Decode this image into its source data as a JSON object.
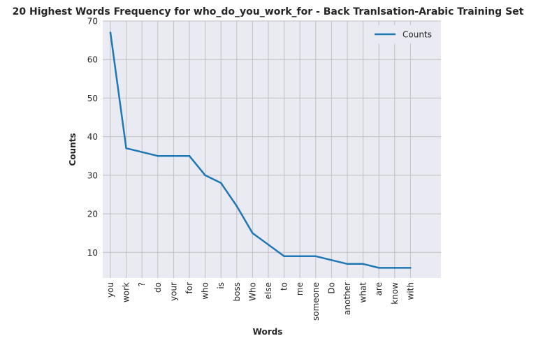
{
  "chart_data": {
    "type": "line",
    "title": "20 Highest Words Frequency for who_do_you_work_for - Back Tranlsation-Arabic Training Set",
    "xlabel": "Words",
    "ylabel": "Counts",
    "categories": [
      "you",
      "work",
      "?",
      "do",
      "your",
      "for",
      "who",
      "is",
      "boss",
      "Who",
      "else",
      "to",
      "me",
      "someone",
      "Do",
      "another",
      "what",
      "are",
      "know",
      "with"
    ],
    "series": [
      {
        "name": "Counts",
        "values": [
          67,
          37,
          36,
          35,
          35,
          35,
          30,
          28,
          22,
          15,
          12,
          9,
          9,
          9,
          8,
          7,
          7,
          6,
          6,
          6
        ],
        "color": "#1f77b4"
      }
    ],
    "ylim": [
      3.35,
      70
    ],
    "yticks": [
      10,
      20,
      30,
      40,
      50,
      60,
      70
    ],
    "grid": true,
    "legend": "top-right",
    "background": "#eaeaf2"
  }
}
